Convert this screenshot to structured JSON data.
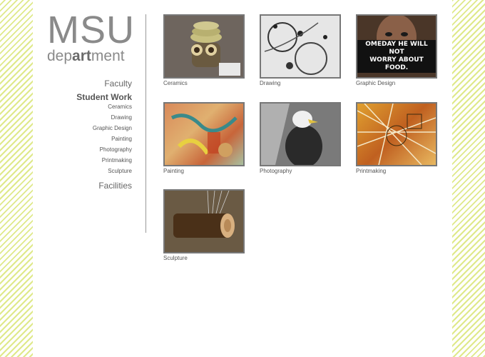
{
  "logo": {
    "main": "MSU",
    "sub_pre": "dep",
    "sub_bold": "art",
    "sub_post": "ment"
  },
  "nav": {
    "faculty": "Faculty",
    "student_work": "Student Work",
    "sub_items": [
      "Ceramics",
      "Drawing",
      "Graphic Design",
      "Painting",
      "Photography",
      "Printmaking",
      "Sculpture"
    ],
    "facilities": "Facilities"
  },
  "gallery": {
    "tiles": [
      {
        "caption": "Ceramics"
      },
      {
        "caption": "Drawing"
      },
      {
        "caption": "Graphic Design",
        "poster_line1": "OMEDAY HE WILL NOT",
        "poster_line2": "WORRY ABOUT FOOD."
      },
      {
        "caption": "Painting"
      },
      {
        "caption": "Photography"
      },
      {
        "caption": "Printmaking"
      },
      {
        "caption": "Sculpture"
      }
    ]
  },
  "colors": {
    "stripe": "#dfe98a",
    "text": "#666666",
    "logo": "#8a8a8a"
  }
}
